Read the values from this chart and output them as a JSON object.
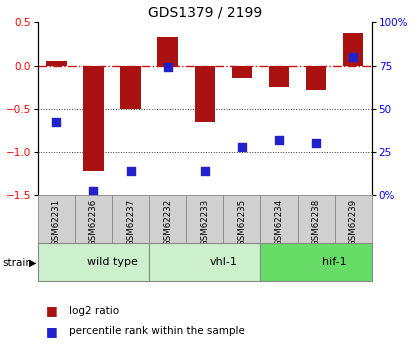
{
  "title": "GDS1379 / 2199",
  "samples": [
    "GSM62231",
    "GSM62236",
    "GSM62237",
    "GSM62232",
    "GSM62233",
    "GSM62235",
    "GSM62234",
    "GSM62238",
    "GSM62239"
  ],
  "log2_ratio": [
    0.05,
    -1.22,
    -0.5,
    0.33,
    -0.65,
    -0.15,
    -0.25,
    -0.28,
    0.38
  ],
  "percentile_rank": [
    42,
    2,
    14,
    74,
    14,
    28,
    32,
    30,
    80
  ],
  "groups": [
    {
      "label": "wild type",
      "start": 0,
      "end": 3,
      "color": "#ccf0cc"
    },
    {
      "label": "vhl-1",
      "start": 3,
      "end": 6,
      "color": "#ccf0cc"
    },
    {
      "label": "hif-1",
      "start": 6,
      "end": 9,
      "color": "#66dd66"
    }
  ],
  "ylim_left": [
    -1.5,
    0.5
  ],
  "ylim_right": [
    0,
    100
  ],
  "bar_color": "#aa1111",
  "dot_color": "#2222cc",
  "bar_width": 0.55,
  "dot_size": 30,
  "hline_color": "#cc1111",
  "hline_style": "-.",
  "grid_color": "#333333",
  "grid_style": ":",
  "strain_label": "strain",
  "legend_bar_label": "log2 ratio",
  "legend_dot_label": "percentile rank within the sample",
  "title_fontsize": 10,
  "tick_fontsize": 7.5,
  "sample_bg_color": "#d0d0d0",
  "group_border_color": "#888888",
  "right_tick_labels": [
    "0%",
    "25",
    "50",
    "75",
    "100%"
  ]
}
